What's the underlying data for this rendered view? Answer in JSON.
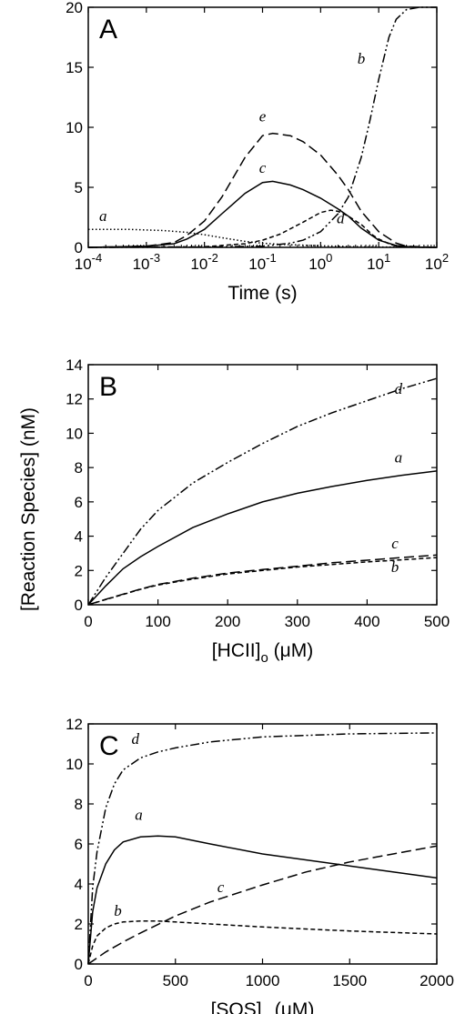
{
  "ylabel_shared": "[Reaction Species] (nM)",
  "chart_data": [
    {
      "panel_label": "A",
      "type": "line",
      "xlabel": "Time (s)",
      "xscale": "log",
      "xlim": [
        0.0001,
        100
      ],
      "ylim": [
        0,
        20
      ],
      "x_ticks": [
        {
          "base": "10",
          "exp": "-4"
        },
        {
          "base": "10",
          "exp": "-3"
        },
        {
          "base": "10",
          "exp": "-2"
        },
        {
          "base": "10",
          "exp": "-1"
        },
        {
          "base": "10",
          "exp": "0"
        },
        {
          "base": "10",
          "exp": "1"
        },
        {
          "base": "10",
          "exp": "2"
        }
      ],
      "y_ticks": [
        "0",
        "5",
        "10",
        "15",
        "20"
      ],
      "series": [
        {
          "name": "a",
          "style": "dotted",
          "label_at": [
            0.00018,
            2.2
          ],
          "x": [
            0.0001,
            0.0005,
            0.001,
            0.002,
            0.005,
            0.01,
            0.02,
            0.05,
            0.1,
            0.2,
            0.5,
            1,
            2,
            5,
            10,
            100
          ],
          "y": [
            1.5,
            1.5,
            1.45,
            1.4,
            1.25,
            1.05,
            0.8,
            0.5,
            0.35,
            0.25,
            0.18,
            0.13,
            0.1,
            0.05,
            0.03,
            0.0
          ]
        },
        {
          "name": "b",
          "style": "dashdotdot",
          "label_at": [
            5,
            15.3
          ],
          "x": [
            0.0001,
            0.01,
            0.1,
            0.3,
            0.5,
            1,
            2,
            3,
            5,
            7,
            10,
            15,
            20,
            30,
            50,
            100
          ],
          "y": [
            0,
            0.02,
            0.1,
            0.35,
            0.6,
            1.3,
            2.8,
            4.2,
            7.5,
            10.5,
            14,
            17.5,
            19.0,
            19.8,
            20,
            20
          ]
        },
        {
          "name": "c",
          "style": "solid",
          "label_at": [
            0.1,
            6.2
          ],
          "x": [
            0.0001,
            0.001,
            0.003,
            0.005,
            0.01,
            0.02,
            0.05,
            0.1,
            0.15,
            0.3,
            0.5,
            1,
            2,
            3,
            5,
            10,
            20,
            40,
            100
          ],
          "y": [
            0,
            0.1,
            0.3,
            0.7,
            1.5,
            2.8,
            4.5,
            5.4,
            5.5,
            5.2,
            4.8,
            4.1,
            3.2,
            2.6,
            1.6,
            0.6,
            0.15,
            0.02,
            0
          ]
        },
        {
          "name": "d",
          "style": "dashed",
          "label_at": [
            2.2,
            2.0
          ],
          "x": [
            0.0001,
            0.01,
            0.05,
            0.1,
            0.2,
            0.5,
            1,
            1.5,
            2,
            3,
            5,
            8,
            10,
            15,
            20,
            30,
            100
          ],
          "y": [
            0,
            0.05,
            0.3,
            0.6,
            1.1,
            2.1,
            2.9,
            3.1,
            3.0,
            2.6,
            1.9,
            1.0,
            0.7,
            0.3,
            0.1,
            0.02,
            0
          ]
        },
        {
          "name": "e",
          "style": "longdash",
          "label_at": [
            0.1,
            10.5
          ],
          "x": [
            0.0001,
            0.001,
            0.003,
            0.005,
            0.01,
            0.02,
            0.05,
            0.1,
            0.15,
            0.3,
            0.5,
            1,
            2,
            3,
            5,
            10,
            20,
            30,
            100
          ],
          "y": [
            0,
            0.1,
            0.4,
            1.0,
            2.2,
            4.2,
            7.5,
            9.3,
            9.5,
            9.3,
            8.8,
            7.7,
            6.0,
            4.8,
            3.0,
            1.3,
            0.35,
            0.1,
            0
          ]
        }
      ]
    },
    {
      "panel_label": "B",
      "type": "line",
      "xlabel": "[HCII]o (μM)",
      "xlabel_main": "[HCII]",
      "xlabel_sub": "o",
      "xlabel_unit": " (μM)",
      "xlim": [
        0,
        500
      ],
      "ylim": [
        0,
        14
      ],
      "x_ticks": [
        "0",
        "100",
        "200",
        "300",
        "400",
        "500"
      ],
      "y_ticks": [
        "0",
        "2",
        "4",
        "6",
        "8",
        "10",
        "12",
        "14"
      ],
      "series": [
        {
          "name": "a",
          "style": "solid",
          "label_at": [
            445,
            8.3
          ],
          "x": [
            0,
            25,
            50,
            75,
            100,
            150,
            200,
            250,
            300,
            350,
            400,
            450,
            500
          ],
          "y": [
            0,
            1.1,
            2.1,
            2.8,
            3.4,
            4.5,
            5.3,
            6.0,
            6.5,
            6.9,
            7.25,
            7.55,
            7.8
          ]
        },
        {
          "name": "b",
          "style": "dashed",
          "label_at": [
            440,
            1.9
          ],
          "x": [
            0,
            25,
            50,
            75,
            100,
            150,
            200,
            250,
            300,
            350,
            400,
            450,
            500
          ],
          "y": [
            0,
            0.3,
            0.6,
            0.9,
            1.15,
            1.5,
            1.8,
            2.0,
            2.2,
            2.35,
            2.5,
            2.62,
            2.75
          ]
        },
        {
          "name": "c",
          "style": "longdash",
          "label_at": [
            440,
            3.3
          ],
          "x": [
            0,
            25,
            50,
            75,
            100,
            150,
            200,
            250,
            300,
            350,
            400,
            450,
            500
          ],
          "y": [
            0,
            0.32,
            0.62,
            0.92,
            1.18,
            1.55,
            1.85,
            2.05,
            2.25,
            2.45,
            2.6,
            2.75,
            2.9
          ]
        },
        {
          "name": "d",
          "style": "dashdotdot",
          "label_at": [
            445,
            12.3
          ],
          "x": [
            0,
            25,
            50,
            75,
            100,
            150,
            200,
            250,
            300,
            350,
            400,
            450,
            500
          ],
          "y": [
            0,
            1.6,
            3.0,
            4.4,
            5.5,
            7.1,
            8.3,
            9.4,
            10.4,
            11.2,
            11.9,
            12.6,
            13.2
          ]
        }
      ]
    },
    {
      "panel_label": "C",
      "type": "line",
      "xlabel": "[SOS]o (μM)",
      "xlabel_main": "[SOS]",
      "xlabel_sub": "o",
      "xlabel_unit": " (μM)",
      "xlim": [
        0,
        2000
      ],
      "ylim": [
        0,
        12
      ],
      "x_ticks": [
        "0",
        "500",
        "1000",
        "1500",
        "2000"
      ],
      "y_ticks": [
        "0",
        "2",
        "4",
        "6",
        "8",
        "10",
        "12"
      ],
      "series": [
        {
          "name": "a",
          "style": "solid",
          "label_at": [
            290,
            7.2
          ],
          "x": [
            0,
            25,
            50,
            100,
            150,
            200,
            300,
            400,
            500,
            700,
            1000,
            1500,
            2000
          ],
          "y": [
            0,
            2.6,
            3.8,
            5.0,
            5.7,
            6.1,
            6.35,
            6.4,
            6.35,
            6.0,
            5.5,
            4.9,
            4.3
          ]
        },
        {
          "name": "b",
          "style": "dashed",
          "label_at": [
            170,
            2.4
          ],
          "x": [
            0,
            25,
            50,
            100,
            150,
            200,
            300,
            400,
            500,
            700,
            1000,
            1500,
            2000
          ],
          "y": [
            0,
            0.9,
            1.4,
            1.8,
            2.0,
            2.1,
            2.15,
            2.15,
            2.1,
            2.0,
            1.85,
            1.65,
            1.5
          ]
        },
        {
          "name": "c",
          "style": "longdash",
          "label_at": [
            760,
            3.6
          ],
          "x": [
            0,
            50,
            100,
            200,
            300,
            500,
            700,
            1000,
            1250,
            1500,
            1750,
            2000
          ],
          "y": [
            0,
            0.3,
            0.6,
            1.1,
            1.55,
            2.4,
            3.1,
            3.95,
            4.6,
            5.1,
            5.5,
            5.9
          ]
        },
        {
          "name": "d",
          "style": "dashdotdot",
          "label_at": [
            270,
            11.0
          ],
          "x": [
            0,
            25,
            50,
            100,
            150,
            200,
            300,
            400,
            500,
            700,
            1000,
            1500,
            2000
          ],
          "y": [
            0,
            3.8,
            5.6,
            7.8,
            9.0,
            9.7,
            10.3,
            10.6,
            10.8,
            11.1,
            11.35,
            11.5,
            11.55
          ]
        }
      ]
    }
  ]
}
